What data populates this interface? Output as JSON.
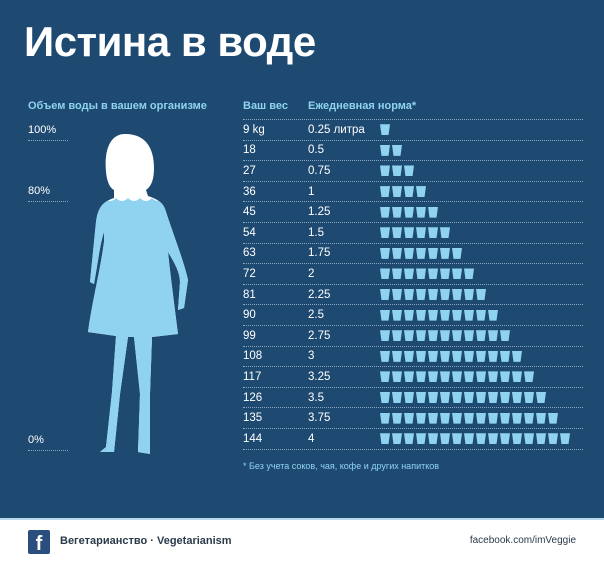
{
  "title": "Истина в воде",
  "left": {
    "heading": "Объем воды в вашем организме",
    "levels": [
      "100%",
      "80%",
      "0%"
    ]
  },
  "table": {
    "headers": [
      "Ваш вес",
      "Ежедневная норма*"
    ],
    "rows": [
      {
        "weight": "9 kg",
        "norm": "0.25 литра",
        "glasses": 1
      },
      {
        "weight": "18",
        "norm": "0.5",
        "glasses": 2
      },
      {
        "weight": "27",
        "norm": "0.75",
        "glasses": 3
      },
      {
        "weight": "36",
        "norm": "1",
        "glasses": 4
      },
      {
        "weight": "45",
        "norm": "1.25",
        "glasses": 5
      },
      {
        "weight": "54",
        "norm": "1.5",
        "glasses": 6
      },
      {
        "weight": "63",
        "norm": "1.75",
        "glasses": 7
      },
      {
        "weight": "72",
        "norm": "2",
        "glasses": 8
      },
      {
        "weight": "81",
        "norm": "2.25",
        "glasses": 9
      },
      {
        "weight": "90",
        "norm": "2.5",
        "glasses": 10
      },
      {
        "weight": "99",
        "norm": "2.75",
        "glasses": 11
      },
      {
        "weight": "108",
        "norm": "3",
        "glasses": 12
      },
      {
        "weight": "117",
        "norm": "3.25",
        "glasses": 13
      },
      {
        "weight": "126",
        "norm": "3.5",
        "glasses": 14
      },
      {
        "weight": "135",
        "norm": "3.75",
        "glasses": 15
      },
      {
        "weight": "144",
        "norm": "4",
        "glasses": 16
      }
    ],
    "note": "* Без учета соков, чая, кофе и других напитков"
  },
  "footer": {
    "brand": "Вегетарианство  · Vegetarianism",
    "url": "facebook.com/imVeggie",
    "icon": "facebook-icon"
  },
  "colors": {
    "background": "#1e4a72",
    "water": "#8fd3f0",
    "accent": "#8fd3f0"
  }
}
